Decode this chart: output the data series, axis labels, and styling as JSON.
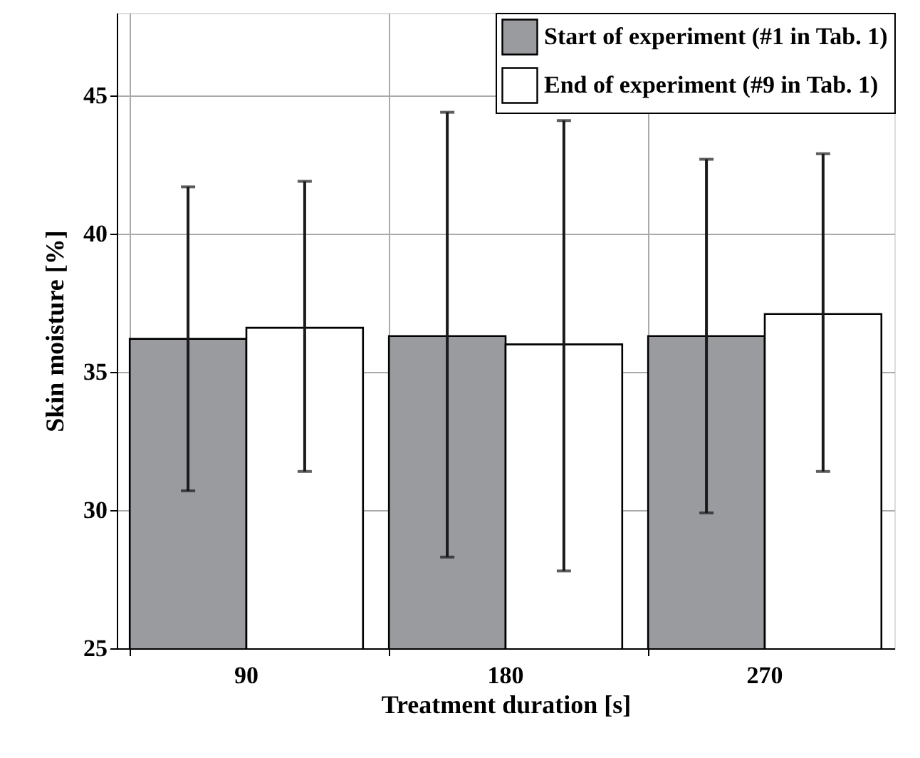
{
  "chart_data": {
    "type": "bar",
    "xlabel": "Treatment duration [s]",
    "ylabel": "Skin moisture [%]",
    "categories": [
      "90",
      "180",
      "270"
    ],
    "series": [
      {
        "name": "Start of experiment (#1 in Tab. 1)",
        "color": "#9a9b9f",
        "values": [
          36.2,
          36.3,
          36.3
        ],
        "errors": [
          [
            30.7,
            41.7
          ],
          [
            28.3,
            44.4
          ],
          [
            29.9,
            42.7
          ]
        ]
      },
      {
        "name": "End of experiment (#9 in Tab. 1)",
        "color": "#ffffff",
        "values": [
          36.6,
          36.0,
          37.1
        ],
        "errors": [
          [
            31.4,
            41.9
          ],
          [
            27.8,
            44.1
          ],
          [
            31.4,
            42.9
          ]
        ]
      }
    ],
    "ylim": [
      25,
      48
    ],
    "yticks": [
      25,
      30,
      35,
      40,
      45
    ],
    "grid": true,
    "legend": "top right"
  }
}
